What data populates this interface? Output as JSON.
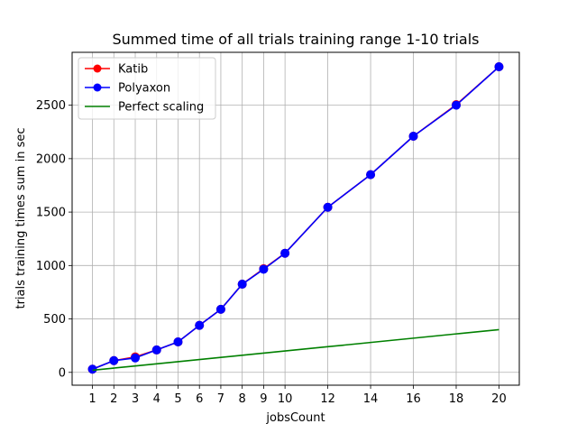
{
  "chart_data": {
    "type": "line",
    "title": "Summed time of all trials training range 1-10 trials",
    "xlabel": "jobsCount",
    "ylabel": "trials training times sum in sec",
    "x": [
      1,
      2,
      3,
      4,
      5,
      6,
      7,
      8,
      9,
      10,
      12,
      14,
      16,
      18,
      20
    ],
    "xticks": [
      1,
      2,
      3,
      4,
      5,
      6,
      7,
      8,
      9,
      10,
      12,
      14,
      16,
      18,
      20
    ],
    "yticks": [
      0,
      500,
      1000,
      1500,
      2000,
      2500
    ],
    "xlim": [
      0.05,
      20.95
    ],
    "ylim": [
      -120,
      2995
    ],
    "grid": true,
    "legend_position": "upper-left",
    "series": [
      {
        "name": "Katib",
        "color": "#ff0000",
        "marker": "circle",
        "values": [
          30,
          110,
          145,
          210,
          285,
          440,
          590,
          825,
          970,
          1115,
          1545,
          1850,
          2210,
          2505,
          2860
        ]
      },
      {
        "name": "Polyaxon",
        "color": "#0000ff",
        "marker": "circle",
        "values": [
          30,
          110,
          135,
          210,
          285,
          440,
          590,
          825,
          965,
          1115,
          1545,
          1850,
          2210,
          2500,
          2860
        ]
      },
      {
        "name": "Perfect scaling",
        "color": "#008000",
        "marker": "none",
        "values": [
          20,
          40,
          60,
          80,
          100,
          120,
          140,
          160,
          180,
          200,
          240,
          280,
          320,
          360,
          400
        ]
      }
    ]
  }
}
